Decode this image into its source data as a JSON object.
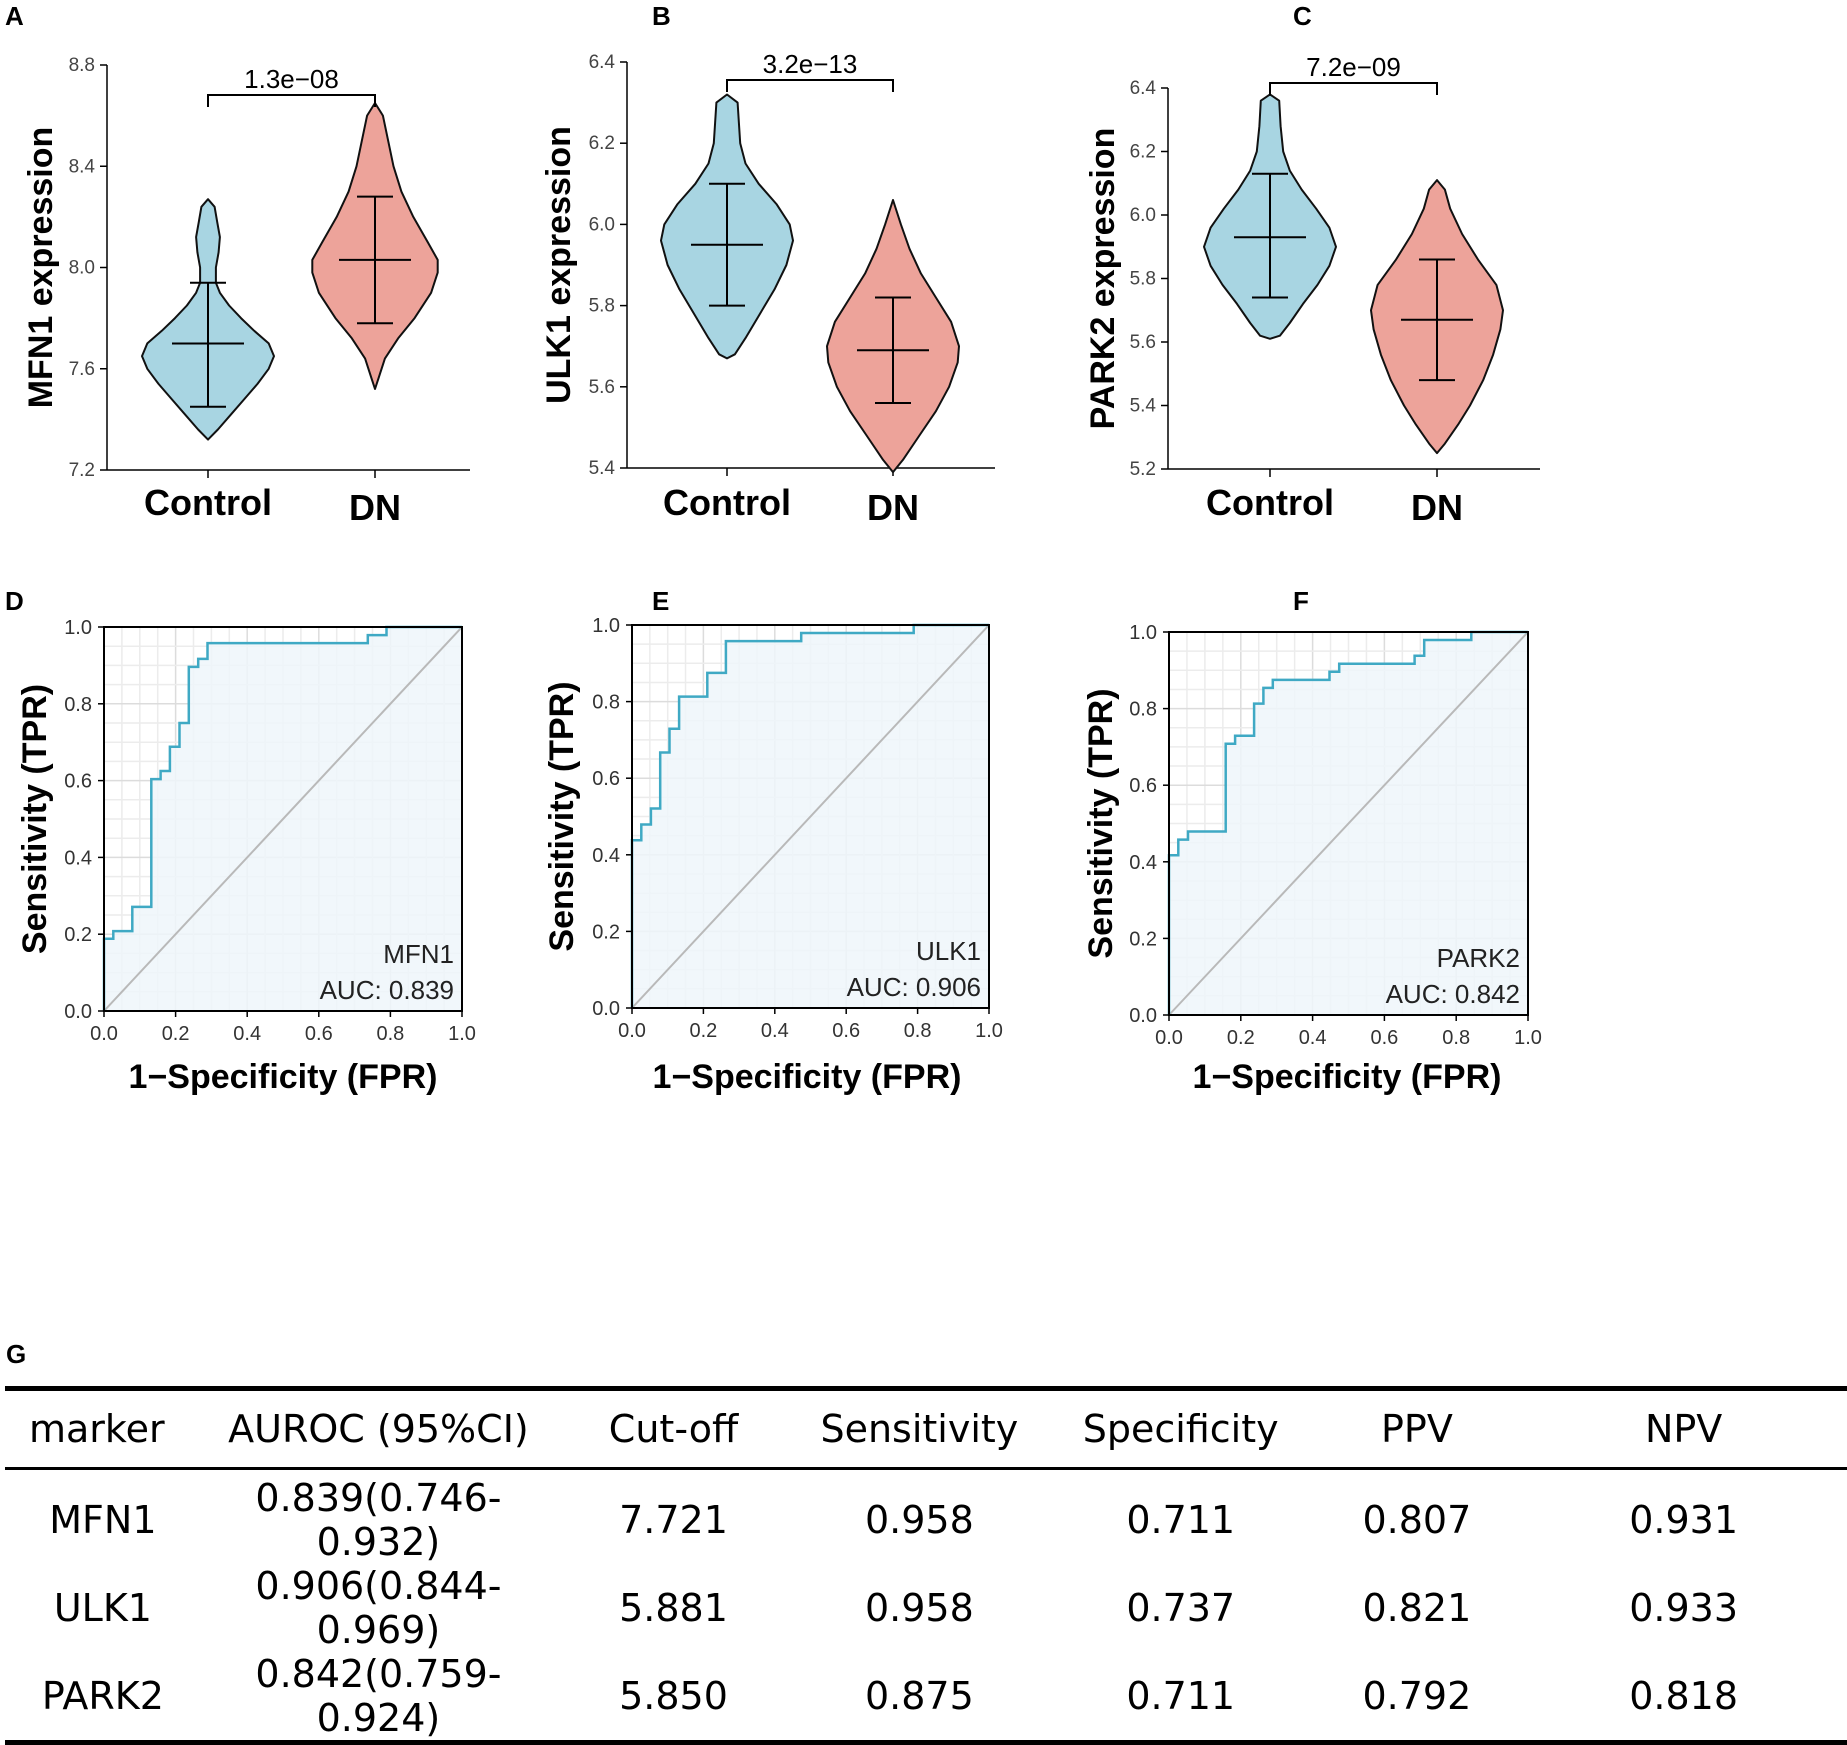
{
  "chart_data": [
    {
      "panel": "A",
      "type": "violin",
      "ylabel": "MFN1 expression",
      "categories": [
        "Control",
        "DN"
      ],
      "ylim": [
        7.2,
        8.8
      ],
      "yticks": [
        7.2,
        7.6,
        8.0,
        8.4,
        8.8
      ],
      "ytick_labels": [
        "7.2",
        "7.6",
        "8.0",
        "8.4",
        "8.8"
      ],
      "pvalue": "1.3e−08",
      "colors": [
        "#a8d5e2",
        "#eda39a"
      ],
      "groups": [
        {
          "name": "Control",
          "mean": 7.7,
          "sd_low": 7.45,
          "sd_high": 7.94,
          "min": 7.32,
          "max": 8.27,
          "profile": [
            [
              7.32,
              0.0
            ],
            [
              7.36,
              0.15
            ],
            [
              7.42,
              0.35
            ],
            [
              7.48,
              0.55
            ],
            [
              7.54,
              0.75
            ],
            [
              7.6,
              0.92
            ],
            [
              7.65,
              1.0
            ],
            [
              7.7,
              0.92
            ],
            [
              7.75,
              0.7
            ],
            [
              7.8,
              0.5
            ],
            [
              7.85,
              0.32
            ],
            [
              7.9,
              0.18
            ],
            [
              7.94,
              0.12
            ],
            [
              8.0,
              0.12
            ],
            [
              8.06,
              0.16
            ],
            [
              8.12,
              0.18
            ],
            [
              8.18,
              0.14
            ],
            [
              8.24,
              0.1
            ],
            [
              8.27,
              0.0
            ]
          ]
        },
        {
          "name": "DN",
          "mean": 8.03,
          "sd_low": 7.78,
          "sd_high": 8.28,
          "min": 7.52,
          "max": 8.65,
          "profile": [
            [
              7.52,
              0.0
            ],
            [
              7.56,
              0.05
            ],
            [
              7.64,
              0.15
            ],
            [
              7.72,
              0.35
            ],
            [
              7.8,
              0.6
            ],
            [
              7.9,
              0.85
            ],
            [
              7.98,
              0.95
            ],
            [
              8.03,
              0.95
            ],
            [
              8.1,
              0.8
            ],
            [
              8.2,
              0.58
            ],
            [
              8.3,
              0.4
            ],
            [
              8.4,
              0.28
            ],
            [
              8.5,
              0.2
            ],
            [
              8.6,
              0.12
            ],
            [
              8.65,
              0.0
            ]
          ]
        }
      ]
    },
    {
      "panel": "B",
      "type": "violin",
      "ylabel": "ULK1 expression",
      "categories": [
        "Control",
        "DN"
      ],
      "ylim": [
        5.4,
        6.4
      ],
      "yticks": [
        5.4,
        5.6,
        5.8,
        6.0,
        6.2,
        6.4
      ],
      "ytick_labels": [
        "5.4",
        "5.6",
        "5.8",
        "6.0",
        "6.2",
        "6.4"
      ],
      "pvalue": "3.2e−13",
      "colors": [
        "#a8d5e2",
        "#eda39a"
      ],
      "groups": [
        {
          "name": "Control",
          "mean": 5.95,
          "sd_low": 5.8,
          "sd_high": 6.1,
          "min": 5.67,
          "max": 6.32,
          "profile": [
            [
              5.67,
              0.0
            ],
            [
              5.68,
              0.12
            ],
            [
              5.72,
              0.28
            ],
            [
              5.78,
              0.5
            ],
            [
              5.84,
              0.72
            ],
            [
              5.9,
              0.9
            ],
            [
              5.96,
              1.0
            ],
            [
              6.0,
              0.95
            ],
            [
              6.05,
              0.75
            ],
            [
              6.1,
              0.48
            ],
            [
              6.15,
              0.28
            ],
            [
              6.2,
              0.2
            ],
            [
              6.25,
              0.18
            ],
            [
              6.3,
              0.16
            ],
            [
              6.32,
              0.0
            ]
          ]
        },
        {
          "name": "DN",
          "mean": 5.69,
          "sd_low": 5.56,
          "sd_high": 5.82,
          "min": 5.39,
          "max": 6.06,
          "profile": [
            [
              5.39,
              0.0
            ],
            [
              5.42,
              0.15
            ],
            [
              5.48,
              0.4
            ],
            [
              5.54,
              0.65
            ],
            [
              5.6,
              0.85
            ],
            [
              5.66,
              0.98
            ],
            [
              5.7,
              1.0
            ],
            [
              5.76,
              0.88
            ],
            [
              5.82,
              0.65
            ],
            [
              5.88,
              0.42
            ],
            [
              5.94,
              0.25
            ],
            [
              6.0,
              0.12
            ],
            [
              6.06,
              0.0
            ]
          ]
        }
      ]
    },
    {
      "panel": "C",
      "type": "violin",
      "ylabel": "PARK2 expression",
      "categories": [
        "Control",
        "DN"
      ],
      "ylim": [
        5.2,
        6.4
      ],
      "yticks": [
        5.2,
        5.4,
        5.6,
        5.8,
        6.0,
        6.2,
        6.4
      ],
      "ytick_labels": [
        "5.2",
        "5.4",
        "5.6",
        "5.8",
        "6.0",
        "6.2",
        "6.4"
      ],
      "pvalue": "7.2e−09",
      "colors": [
        "#a8d5e2",
        "#eda39a"
      ],
      "groups": [
        {
          "name": "Control",
          "mean": 5.93,
          "sd_low": 5.74,
          "sd_high": 6.13,
          "min": 5.61,
          "max": 6.38,
          "profile": [
            [
              5.61,
              0.0
            ],
            [
              5.62,
              0.15
            ],
            [
              5.66,
              0.3
            ],
            [
              5.72,
              0.5
            ],
            [
              5.78,
              0.72
            ],
            [
              5.84,
              0.9
            ],
            [
              5.9,
              1.0
            ],
            [
              5.96,
              0.9
            ],
            [
              6.02,
              0.7
            ],
            [
              6.08,
              0.48
            ],
            [
              6.14,
              0.3
            ],
            [
              6.2,
              0.2
            ],
            [
              6.28,
              0.16
            ],
            [
              6.36,
              0.14
            ],
            [
              6.38,
              0.0
            ]
          ]
        },
        {
          "name": "DN",
          "mean": 5.67,
          "sd_low": 5.48,
          "sd_high": 5.86,
          "min": 5.25,
          "max": 6.11,
          "profile": [
            [
              5.25,
              0.0
            ],
            [
              5.28,
              0.12
            ],
            [
              5.34,
              0.32
            ],
            [
              5.4,
              0.5
            ],
            [
              5.48,
              0.7
            ],
            [
              5.56,
              0.85
            ],
            [
              5.64,
              0.96
            ],
            [
              5.7,
              1.0
            ],
            [
              5.78,
              0.9
            ],
            [
              5.86,
              0.62
            ],
            [
              5.94,
              0.38
            ],
            [
              6.02,
              0.2
            ],
            [
              6.08,
              0.12
            ],
            [
              6.11,
              0.0
            ]
          ]
        }
      ]
    },
    {
      "panel": "D",
      "type": "line",
      "subtype": "roc",
      "xlabel": "1−Specificity (FPR)",
      "ylabel": "Sensitivity (TPR)",
      "xlim": [
        0,
        1
      ],
      "ylim": [
        0,
        1
      ],
      "ticks": [
        0,
        0.2,
        0.4,
        0.6,
        0.8,
        1.0
      ],
      "tick_labels": [
        "0.0",
        "0.2",
        "0.4",
        "0.6",
        "0.8",
        "1.0"
      ],
      "legend_name": "MFN1",
      "legend_auc": "AUC: 0.839",
      "legend_position": "bottom-right",
      "line_color": "#3fa9c4",
      "fill_color": "#eef6fa",
      "x": [
        0,
        0,
        0.026,
        0.026,
        0.079,
        0.079,
        0.132,
        0.132,
        0.158,
        0.158,
        0.184,
        0.184,
        0.211,
        0.211,
        0.237,
        0.237,
        0.263,
        0.263,
        0.289,
        0.289,
        0.737,
        0.737,
        0.789,
        0.789,
        1.0
      ],
      "y": [
        0,
        0.188,
        0.188,
        0.208,
        0.208,
        0.271,
        0.271,
        0.604,
        0.604,
        0.625,
        0.625,
        0.688,
        0.688,
        0.75,
        0.75,
        0.896,
        0.896,
        0.917,
        0.917,
        0.958,
        0.958,
        0.979,
        0.979,
        1.0,
        1.0
      ]
    },
    {
      "panel": "E",
      "type": "line",
      "subtype": "roc",
      "xlabel": "1−Specificity (FPR)",
      "ylabel": "Sensitivity (TPR)",
      "xlim": [
        0,
        1
      ],
      "ylim": [
        0,
        1
      ],
      "ticks": [
        0,
        0.2,
        0.4,
        0.6,
        0.8,
        1.0
      ],
      "tick_labels": [
        "0.0",
        "0.2",
        "0.4",
        "0.6",
        "0.8",
        "1.0"
      ],
      "legend_name": "ULK1",
      "legend_auc": "AUC: 0.906",
      "legend_position": "bottom-right",
      "line_color": "#3fa9c4",
      "fill_color": "#eef6fa",
      "x": [
        0,
        0,
        0.026,
        0.026,
        0.053,
        0.053,
        0.079,
        0.079,
        0.105,
        0.105,
        0.132,
        0.132,
        0.211,
        0.211,
        0.263,
        0.263,
        0.474,
        0.474,
        0.789,
        0.789,
        1.0
      ],
      "y": [
        0,
        0.438,
        0.438,
        0.479,
        0.479,
        0.521,
        0.521,
        0.667,
        0.667,
        0.729,
        0.729,
        0.813,
        0.813,
        0.875,
        0.875,
        0.958,
        0.958,
        0.979,
        0.979,
        1.0,
        1.0
      ]
    },
    {
      "panel": "F",
      "type": "line",
      "subtype": "roc",
      "xlabel": "1−Specificity (FPR)",
      "ylabel": "Sensitivity (TPR)",
      "xlim": [
        0,
        1
      ],
      "ylim": [
        0,
        1
      ],
      "ticks": [
        0,
        0.2,
        0.4,
        0.6,
        0.8,
        1.0
      ],
      "tick_labels": [
        "0.0",
        "0.2",
        "0.4",
        "0.6",
        "0.8",
        "1.0"
      ],
      "legend_name": "PARK2",
      "legend_auc": "AUC: 0.842",
      "legend_position": "bottom-right",
      "line_color": "#3fa9c4",
      "fill_color": "#eef6fa",
      "x": [
        0,
        0,
        0.026,
        0.026,
        0.053,
        0.053,
        0.158,
        0.158,
        0.184,
        0.184,
        0.237,
        0.237,
        0.263,
        0.263,
        0.289,
        0.289,
        0.447,
        0.447,
        0.474,
        0.474,
        0.684,
        0.684,
        0.711,
        0.711,
        0.842,
        0.842,
        1.0
      ],
      "y": [
        0,
        0.417,
        0.417,
        0.458,
        0.458,
        0.479,
        0.479,
        0.708,
        0.708,
        0.729,
        0.729,
        0.813,
        0.813,
        0.854,
        0.854,
        0.875,
        0.875,
        0.896,
        0.896,
        0.917,
        0.917,
        0.938,
        0.938,
        0.979,
        0.979,
        1.0,
        1.0
      ]
    }
  ],
  "table": {
    "panel": "G",
    "headers": [
      "marker",
      "AUROC (95%CI)",
      "Cut-off",
      "Sensitivity",
      "Specificity",
      "PPV",
      "NPV"
    ],
    "rows": [
      [
        "MFN1",
        "0.839(0.746-0.932)",
        "7.721",
        "0.958",
        "0.711",
        "0.807",
        "0.931"
      ],
      [
        "ULK1",
        "0.906(0.844-0.969)",
        "5.881",
        "0.958",
        "0.737",
        "0.821",
        "0.933"
      ],
      [
        "PARK2",
        "0.842(0.759-0.924)",
        "5.850",
        "0.875",
        "0.711",
        "0.792",
        "0.818"
      ]
    ]
  }
}
